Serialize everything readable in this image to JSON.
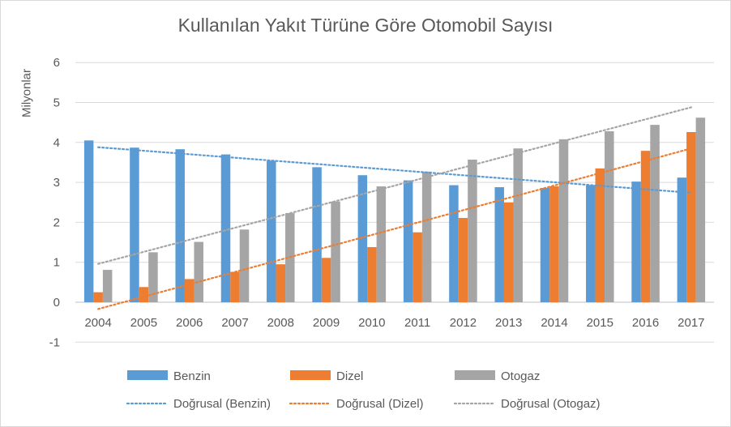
{
  "chart_data": {
    "type": "bar",
    "title": "Kullanılan Yakıt Türüne Göre Otomobil Sayısı",
    "ylabel": "Milyonlar",
    "xlabel": "",
    "ylim": [
      -1,
      6
    ],
    "yticks": [
      "-1",
      "0",
      "1",
      "2",
      "3",
      "4",
      "5",
      "6"
    ],
    "grid": true,
    "legend_position": "bottom",
    "categories": [
      "2004",
      "2005",
      "2006",
      "2007",
      "2008",
      "2009",
      "2010",
      "2011",
      "2012",
      "2013",
      "2014",
      "2015",
      "2016",
      "2017"
    ],
    "series": [
      {
        "name": "Benzin",
        "color": "#5b9bd5",
        "values": [
          4.05,
          3.87,
          3.83,
          3.7,
          3.54,
          3.38,
          3.18,
          3.05,
          2.93,
          2.88,
          2.86,
          2.93,
          3.02,
          3.12
        ]
      },
      {
        "name": "Dizel",
        "color": "#ed7d31",
        "values": [
          0.25,
          0.38,
          0.58,
          0.76,
          0.95,
          1.11,
          1.38,
          1.75,
          2.11,
          2.5,
          2.9,
          3.35,
          3.79,
          4.26
        ]
      },
      {
        "name": "Otogaz",
        "color": "#a5a5a5",
        "values": [
          0.81,
          1.25,
          1.51,
          1.82,
          2.23,
          2.52,
          2.9,
          3.27,
          3.57,
          3.85,
          4.08,
          4.28,
          4.44,
          4.62
        ]
      }
    ],
    "trendlines": [
      {
        "name": "Doğrusal (Benzin)",
        "color": "#5b9bd5",
        "start": 3.88,
        "end": 2.74
      },
      {
        "name": "Doğrusal (Dizel)",
        "color": "#ed7d31",
        "start": -0.17,
        "end": 3.85
      },
      {
        "name": "Doğrusal (Otogaz)",
        "color": "#a5a5a5",
        "start": 0.96,
        "end": 4.88
      }
    ]
  }
}
